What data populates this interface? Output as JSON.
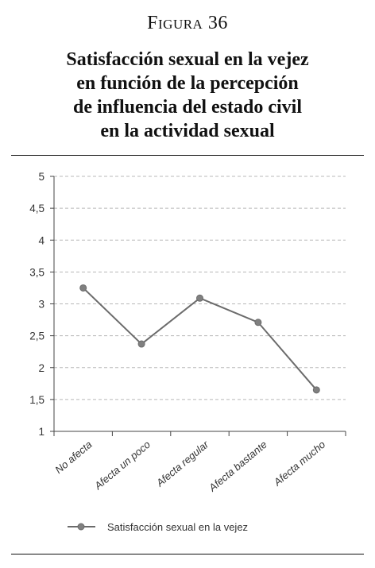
{
  "figure": {
    "label": "Figura 36",
    "title_lines": [
      "Satisfacción sexual en la vejez",
      "en función de la percepción",
      "de influencia del estado civil",
      "en la actividad sexual"
    ]
  },
  "colors": {
    "line": "#6b6b6b",
    "marker": "#808080",
    "grid": "#b8b8b8",
    "axis": "#444444"
  },
  "chart_data": {
    "type": "line",
    "categories": [
      "No afecta",
      "Afecta un poco",
      "Afecta regular",
      "Afecta bastante",
      "Afecta mucho"
    ],
    "series": [
      {
        "name": "Satisfacción sexual en la vejez",
        "values": [
          3.25,
          2.37,
          3.09,
          2.71,
          1.65
        ]
      }
    ],
    "ylim": [
      1,
      5
    ],
    "yticks": [
      1,
      1.5,
      2,
      2.5,
      3,
      3.5,
      4,
      4.5,
      5
    ],
    "ytick_labels": [
      "1",
      "1,5",
      "2",
      "2,5",
      "3",
      "3,5",
      "4",
      "4,5",
      "5"
    ],
    "grid": "horizontal dashed",
    "legend": "bottom",
    "xlabel": "",
    "ylabel": ""
  }
}
